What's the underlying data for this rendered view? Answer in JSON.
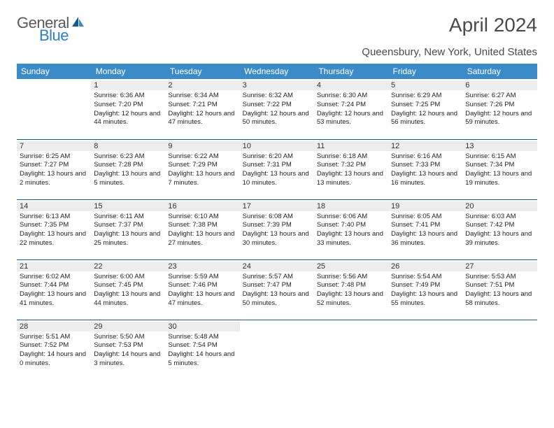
{
  "brand": {
    "part1": "General",
    "part2": "Blue"
  },
  "title": "April 2024",
  "location": "Queensbury, New York, United States",
  "weekdays": [
    "Sunday",
    "Monday",
    "Tuesday",
    "Wednesday",
    "Thursday",
    "Friday",
    "Saturday"
  ],
  "style": {
    "header_bg": "#3b8bc9",
    "header_text": "#ffffff",
    "daynum_bg": "#ededed",
    "row_border": "#1a5a8a",
    "title_color": "#4a4a4a",
    "logo_gray": "#5a5a5a",
    "logo_blue": "#2a7fc9",
    "cell_font_size": 9.5,
    "daynum_font_size": 11,
    "title_font_size": 28,
    "location_font_size": 15,
    "header_font_size": 12
  },
  "weeks": [
    [
      null,
      {
        "n": "1",
        "sr": "6:36 AM",
        "ss": "7:20 PM",
        "dl": "12 hours and 44 minutes."
      },
      {
        "n": "2",
        "sr": "6:34 AM",
        "ss": "7:21 PM",
        "dl": "12 hours and 47 minutes."
      },
      {
        "n": "3",
        "sr": "6:32 AM",
        "ss": "7:22 PM",
        "dl": "12 hours and 50 minutes."
      },
      {
        "n": "4",
        "sr": "6:30 AM",
        "ss": "7:24 PM",
        "dl": "12 hours and 53 minutes."
      },
      {
        "n": "5",
        "sr": "6:29 AM",
        "ss": "7:25 PM",
        "dl": "12 hours and 56 minutes."
      },
      {
        "n": "6",
        "sr": "6:27 AM",
        "ss": "7:26 PM",
        "dl": "12 hours and 59 minutes."
      }
    ],
    [
      {
        "n": "7",
        "sr": "6:25 AM",
        "ss": "7:27 PM",
        "dl": "13 hours and 2 minutes."
      },
      {
        "n": "8",
        "sr": "6:23 AM",
        "ss": "7:28 PM",
        "dl": "13 hours and 5 minutes."
      },
      {
        "n": "9",
        "sr": "6:22 AM",
        "ss": "7:29 PM",
        "dl": "13 hours and 7 minutes."
      },
      {
        "n": "10",
        "sr": "6:20 AM",
        "ss": "7:31 PM",
        "dl": "13 hours and 10 minutes."
      },
      {
        "n": "11",
        "sr": "6:18 AM",
        "ss": "7:32 PM",
        "dl": "13 hours and 13 minutes."
      },
      {
        "n": "12",
        "sr": "6:16 AM",
        "ss": "7:33 PM",
        "dl": "13 hours and 16 minutes."
      },
      {
        "n": "13",
        "sr": "6:15 AM",
        "ss": "7:34 PM",
        "dl": "13 hours and 19 minutes."
      }
    ],
    [
      {
        "n": "14",
        "sr": "6:13 AM",
        "ss": "7:35 PM",
        "dl": "13 hours and 22 minutes."
      },
      {
        "n": "15",
        "sr": "6:11 AM",
        "ss": "7:37 PM",
        "dl": "13 hours and 25 minutes."
      },
      {
        "n": "16",
        "sr": "6:10 AM",
        "ss": "7:38 PM",
        "dl": "13 hours and 27 minutes."
      },
      {
        "n": "17",
        "sr": "6:08 AM",
        "ss": "7:39 PM",
        "dl": "13 hours and 30 minutes."
      },
      {
        "n": "18",
        "sr": "6:06 AM",
        "ss": "7:40 PM",
        "dl": "13 hours and 33 minutes."
      },
      {
        "n": "19",
        "sr": "6:05 AM",
        "ss": "7:41 PM",
        "dl": "13 hours and 36 minutes."
      },
      {
        "n": "20",
        "sr": "6:03 AM",
        "ss": "7:42 PM",
        "dl": "13 hours and 39 minutes."
      }
    ],
    [
      {
        "n": "21",
        "sr": "6:02 AM",
        "ss": "7:44 PM",
        "dl": "13 hours and 41 minutes."
      },
      {
        "n": "22",
        "sr": "6:00 AM",
        "ss": "7:45 PM",
        "dl": "13 hours and 44 minutes."
      },
      {
        "n": "23",
        "sr": "5:59 AM",
        "ss": "7:46 PM",
        "dl": "13 hours and 47 minutes."
      },
      {
        "n": "24",
        "sr": "5:57 AM",
        "ss": "7:47 PM",
        "dl": "13 hours and 50 minutes."
      },
      {
        "n": "25",
        "sr": "5:56 AM",
        "ss": "7:48 PM",
        "dl": "13 hours and 52 minutes."
      },
      {
        "n": "26",
        "sr": "5:54 AM",
        "ss": "7:49 PM",
        "dl": "13 hours and 55 minutes."
      },
      {
        "n": "27",
        "sr": "5:53 AM",
        "ss": "7:51 PM",
        "dl": "13 hours and 58 minutes."
      }
    ],
    [
      {
        "n": "28",
        "sr": "5:51 AM",
        "ss": "7:52 PM",
        "dl": "14 hours and 0 minutes."
      },
      {
        "n": "29",
        "sr": "5:50 AM",
        "ss": "7:53 PM",
        "dl": "14 hours and 3 minutes."
      },
      {
        "n": "30",
        "sr": "5:48 AM",
        "ss": "7:54 PM",
        "dl": "14 hours and 5 minutes."
      },
      null,
      null,
      null,
      null
    ]
  ],
  "labels": {
    "sunrise": "Sunrise:",
    "sunset": "Sunset:",
    "daylight": "Daylight:"
  }
}
